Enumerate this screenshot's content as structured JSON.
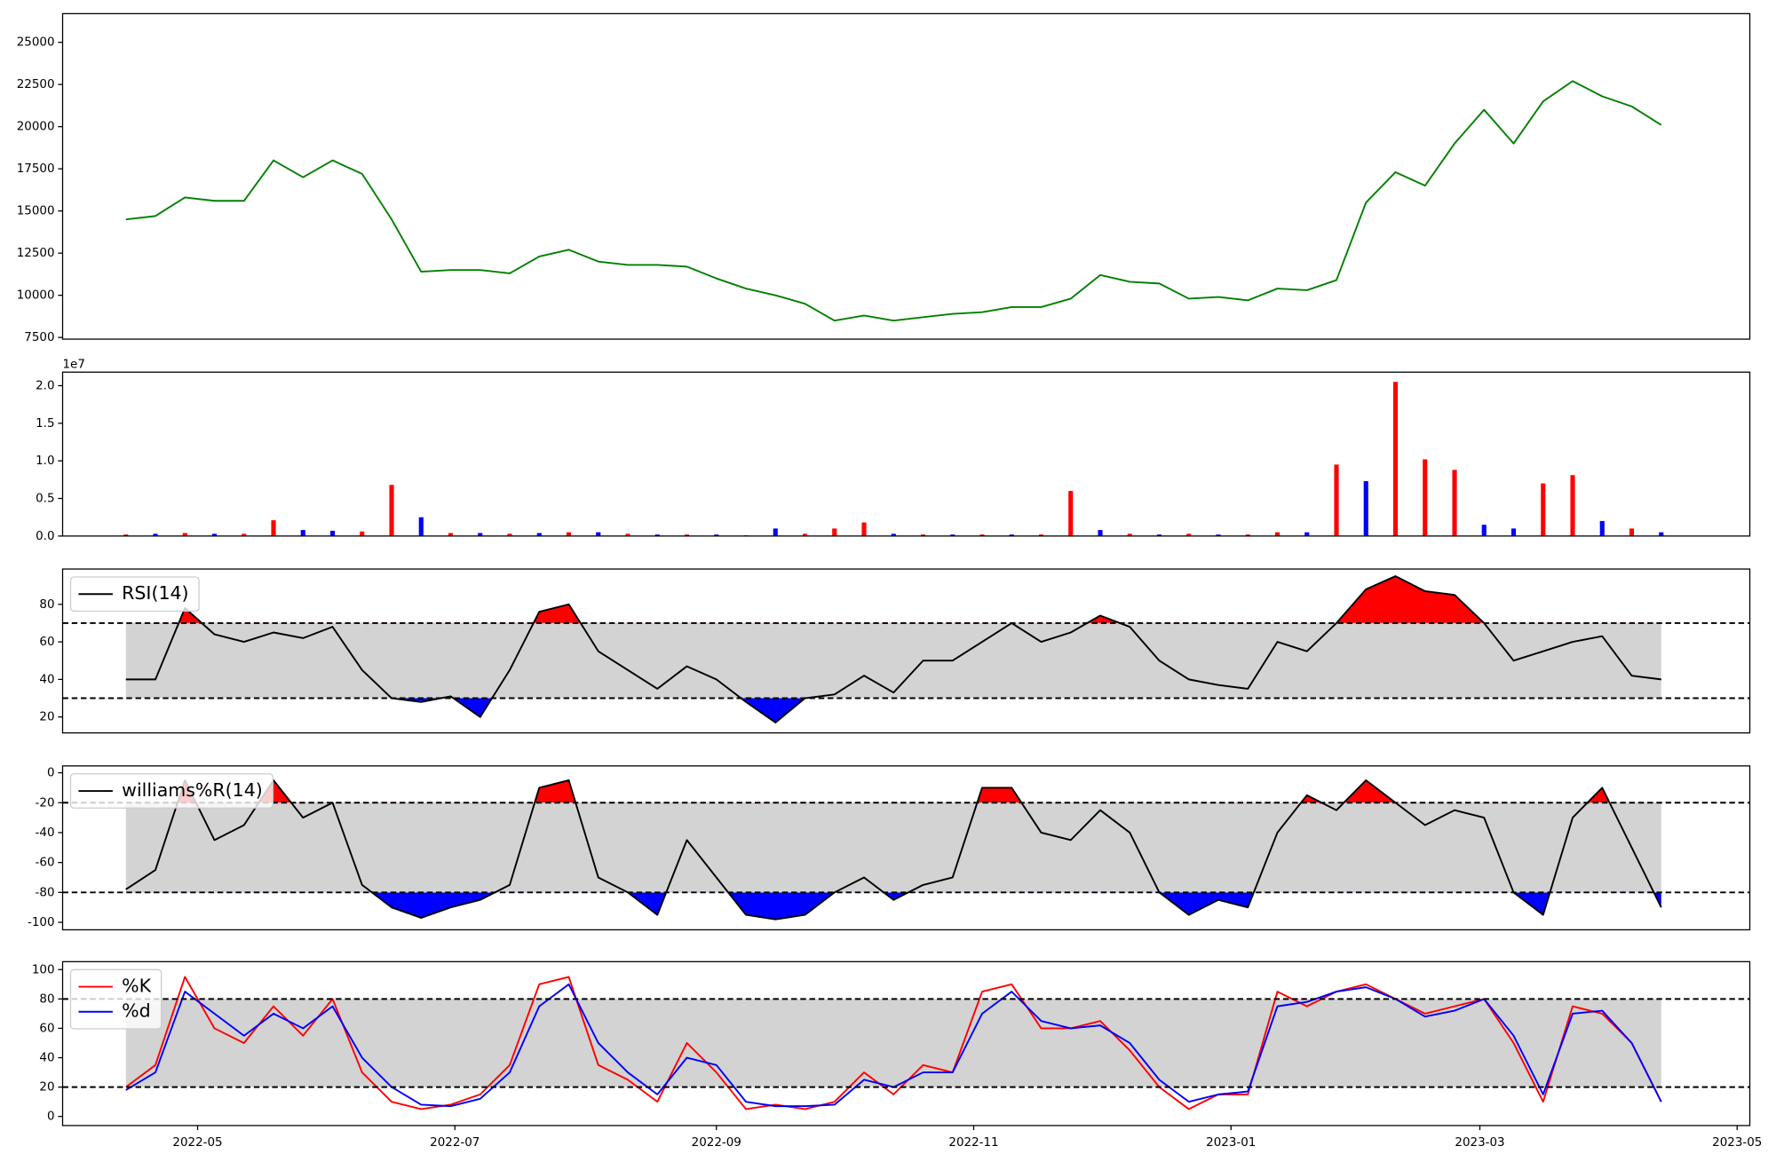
{
  "chart_data": [
    {
      "type": "line",
      "xlim": [
        "2022-03-30",
        "2023-05-04"
      ],
      "ylim": [
        7400,
        26700
      ],
      "yticks": [
        7500,
        10000,
        12500,
        15000,
        17500,
        20000,
        22500,
        25000
      ],
      "x": [
        "2022-04-14",
        "2022-04-21",
        "2022-04-28",
        "2022-05-05",
        "2022-05-12",
        "2022-05-19",
        "2022-05-26",
        "2022-06-02",
        "2022-06-09",
        "2022-06-16",
        "2022-06-23",
        "2022-06-30",
        "2022-07-07",
        "2022-07-14",
        "2022-07-21",
        "2022-07-28",
        "2022-08-04",
        "2022-08-11",
        "2022-08-18",
        "2022-08-25",
        "2022-09-01",
        "2022-09-08",
        "2022-09-15",
        "2022-09-22",
        "2022-09-29",
        "2022-10-06",
        "2022-10-13",
        "2022-10-20",
        "2022-10-27",
        "2022-11-03",
        "2022-11-10",
        "2022-11-17",
        "2022-11-24",
        "2022-12-01",
        "2022-12-08",
        "2022-12-15",
        "2022-12-22",
        "2022-12-29",
        "2023-01-05",
        "2023-01-12",
        "2023-01-19",
        "2023-01-26",
        "2023-02-02",
        "2023-02-09",
        "2023-02-16",
        "2023-02-23",
        "2023-03-02",
        "2023-03-09",
        "2023-03-16",
        "2023-03-23",
        "2023-03-30",
        "2023-04-06",
        "2023-04-13"
      ],
      "series": [
        {
          "color": "green",
          "values": [
            14500,
            14700,
            15800,
            15600,
            15600,
            18000,
            17000,
            18000,
            17200,
            14500,
            11400,
            11500,
            11500,
            11300,
            12300,
            12700,
            12000,
            11800,
            11800,
            11700,
            11000,
            10400,
            10000,
            9500,
            8500,
            8800,
            8500,
            8700,
            8900,
            9000,
            9300,
            9300,
            9800,
            11200,
            10800,
            10700,
            9800,
            9900,
            9700,
            10400,
            10300,
            10900,
            15500,
            17300,
            16500,
            19000,
            21000,
            19000,
            21500,
            22700,
            21800,
            21200,
            20100
          ]
        }
      ]
    },
    {
      "type": "bar",
      "offset_label": "1e7",
      "xlim": [
        "2022-03-30",
        "2023-05-04"
      ],
      "ylim": [
        0,
        21800000
      ],
      "yticks": [
        {
          "value": 0,
          "label": "0.0"
        },
        {
          "value": 5000000,
          "label": "0.5"
        },
        {
          "value": 10000000,
          "label": "1.0"
        },
        {
          "value": 15000000,
          "label": "1.5"
        },
        {
          "value": 20000000,
          "label": "2.0"
        }
      ],
      "x": [
        "2022-04-14",
        "2022-04-21",
        "2022-04-28",
        "2022-05-05",
        "2022-05-12",
        "2022-05-19",
        "2022-05-26",
        "2022-06-02",
        "2022-06-09",
        "2022-06-16",
        "2022-06-23",
        "2022-06-30",
        "2022-07-07",
        "2022-07-14",
        "2022-07-21",
        "2022-07-28",
        "2022-08-04",
        "2022-08-11",
        "2022-08-18",
        "2022-08-25",
        "2022-09-01",
        "2022-09-08",
        "2022-09-15",
        "2022-09-22",
        "2022-09-29",
        "2022-10-06",
        "2022-10-13",
        "2022-10-20",
        "2022-10-27",
        "2022-11-03",
        "2022-11-10",
        "2022-11-17",
        "2022-11-24",
        "2022-12-01",
        "2022-12-08",
        "2022-12-15",
        "2022-12-22",
        "2022-12-29",
        "2023-01-05",
        "2023-01-12",
        "2023-01-19",
        "2023-01-26",
        "2023-02-02",
        "2023-02-09",
        "2023-02-16",
        "2023-02-23",
        "2023-03-02",
        "2023-03-09",
        "2023-03-16",
        "2023-03-23",
        "2023-03-30",
        "2023-04-06",
        "2023-04-13"
      ],
      "series": [
        {
          "values": [
            200000,
            300000,
            400000,
            300000,
            300000,
            2100000,
            800000,
            700000,
            600000,
            6800000,
            2500000,
            400000,
            400000,
            300000,
            400000,
            500000,
            500000,
            300000,
            200000,
            200000,
            200000,
            100000,
            1000000,
            300000,
            1000000,
            1800000,
            300000,
            200000,
            200000,
            200000,
            200000,
            200000,
            6000000,
            800000,
            300000,
            200000,
            300000,
            200000,
            200000,
            500000,
            500000,
            9500000,
            7300000,
            20500000,
            10200000,
            8800000,
            1500000,
            1000000,
            7000000,
            8100000,
            2000000,
            1000000,
            500000
          ],
          "colors": [
            "red",
            "blue",
            "red",
            "blue",
            "red",
            "red",
            "blue",
            "blue",
            "red",
            "red",
            "blue",
            "red",
            "blue",
            "red",
            "blue",
            "red",
            "blue",
            "red",
            "blue",
            "red",
            "blue",
            "red",
            "blue",
            "red",
            "red",
            "red",
            "blue",
            "red",
            "blue",
            "red",
            "blue",
            "red",
            "red",
            "blue",
            "red",
            "blue",
            "red",
            "blue",
            "red",
            "red",
            "blue",
            "red",
            "blue",
            "red",
            "red",
            "red",
            "blue",
            "blue",
            "red",
            "red",
            "blue",
            "red",
            "blue"
          ]
        }
      ]
    },
    {
      "type": "line",
      "legend": "upper left",
      "xlim": [
        "2022-03-30",
        "2023-05-04"
      ],
      "ylim": [
        11.5,
        98.8
      ],
      "yticks": [
        20,
        40,
        60,
        80
      ],
      "hlines": [
        70,
        30
      ],
      "band": [
        30,
        70
      ],
      "fill_above": {
        "value": 70,
        "color": "red"
      },
      "fill_below": {
        "value": 30,
        "color": "blue"
      },
      "x": [
        "2022-04-14",
        "2022-04-21",
        "2022-04-28",
        "2022-05-05",
        "2022-05-12",
        "2022-05-19",
        "2022-05-26",
        "2022-06-02",
        "2022-06-09",
        "2022-06-16",
        "2022-06-23",
        "2022-06-30",
        "2022-07-07",
        "2022-07-14",
        "2022-07-21",
        "2022-07-28",
        "2022-08-04",
        "2022-08-11",
        "2022-08-18",
        "2022-08-25",
        "2022-09-01",
        "2022-09-08",
        "2022-09-15",
        "2022-09-22",
        "2022-09-29",
        "2022-10-06",
        "2022-10-13",
        "2022-10-20",
        "2022-10-27",
        "2022-11-03",
        "2022-11-10",
        "2022-11-17",
        "2022-11-24",
        "2022-12-01",
        "2022-12-08",
        "2022-12-15",
        "2022-12-22",
        "2022-12-29",
        "2023-01-05",
        "2023-01-12",
        "2023-01-19",
        "2023-01-26",
        "2023-02-02",
        "2023-02-09",
        "2023-02-16",
        "2023-02-23",
        "2023-03-02",
        "2023-03-09",
        "2023-03-16",
        "2023-03-23",
        "2023-03-30",
        "2023-04-06",
        "2023-04-13"
      ],
      "series": [
        {
          "name": "RSI(14)",
          "color": "black",
          "values": [
            40,
            40,
            78,
            64,
            60,
            65,
            62,
            68,
            45,
            30,
            28,
            31,
            20,
            45,
            76,
            80,
            55,
            45,
            35,
            47,
            40,
            28,
            17,
            30,
            32,
            42,
            33,
            50,
            50,
            60,
            70,
            60,
            65,
            74,
            68,
            50,
            40,
            37,
            35,
            60,
            55,
            70,
            88,
            95,
            87,
            85,
            70,
            50,
            55,
            60,
            63,
            42,
            40
          ]
        }
      ]
    },
    {
      "type": "line",
      "legend": "upper left",
      "xlim": [
        "2022-03-30",
        "2023-05-04"
      ],
      "ylim": [
        -105,
        4.6
      ],
      "yticks": [
        -100,
        -80,
        -60,
        -40,
        -20,
        0
      ],
      "hlines": [
        -20,
        -80
      ],
      "band": [
        -80,
        -20
      ],
      "fill_above": {
        "value": -20,
        "color": "red"
      },
      "fill_below": {
        "value": -80,
        "color": "blue"
      },
      "x": [
        "2022-04-14",
        "2022-04-21",
        "2022-04-28",
        "2022-05-05",
        "2022-05-12",
        "2022-05-19",
        "2022-05-26",
        "2022-06-02",
        "2022-06-09",
        "2022-06-16",
        "2022-06-23",
        "2022-06-30",
        "2022-07-07",
        "2022-07-14",
        "2022-07-21",
        "2022-07-28",
        "2022-08-04",
        "2022-08-11",
        "2022-08-18",
        "2022-08-25",
        "2022-09-01",
        "2022-09-08",
        "2022-09-15",
        "2022-09-22",
        "2022-09-29",
        "2022-10-06",
        "2022-10-13",
        "2022-10-20",
        "2022-10-27",
        "2022-11-03",
        "2022-11-10",
        "2022-11-17",
        "2022-11-24",
        "2022-12-01",
        "2022-12-08",
        "2022-12-15",
        "2022-12-22",
        "2022-12-29",
        "2023-01-05",
        "2023-01-12",
        "2023-01-19",
        "2023-01-26",
        "2023-02-02",
        "2023-02-09",
        "2023-02-16",
        "2023-02-23",
        "2023-03-02",
        "2023-03-09",
        "2023-03-16",
        "2023-03-23",
        "2023-03-30",
        "2023-04-06",
        "2023-04-13"
      ],
      "series": [
        {
          "name": "williams%R(14)",
          "color": "black",
          "values": [
            -78,
            -65,
            -5,
            -45,
            -35,
            -5,
            -30,
            -20,
            -75,
            -90,
            -97,
            -90,
            -85,
            -75,
            -10,
            -5,
            -70,
            -80,
            -95,
            -45,
            -70,
            -95,
            -98,
            -95,
            -80,
            -70,
            -85,
            -75,
            -70,
            -10,
            -10,
            -40,
            -45,
            -25,
            -40,
            -80,
            -95,
            -85,
            -90,
            -40,
            -15,
            -25,
            -5,
            -20,
            -35,
            -25,
            -30,
            -80,
            -95,
            -30,
            -10,
            -50,
            -90
          ]
        }
      ]
    },
    {
      "type": "line",
      "legend": "upper left",
      "xlim": [
        "2022-03-30",
        "2023-05-04"
      ],
      "ylim": [
        -6.2,
        105.4
      ],
      "yticks": [
        0,
        20,
        40,
        60,
        80,
        100
      ],
      "hlines": [
        80,
        20
      ],
      "band": [
        20,
        80
      ],
      "xticks": [
        {
          "value": "2022-05-01",
          "label": "2022-05"
        },
        {
          "value": "2022-07-01",
          "label": "2022-07"
        },
        {
          "value": "2022-09-01",
          "label": "2022-09"
        },
        {
          "value": "2022-11-01",
          "label": "2022-11"
        },
        {
          "value": "2023-01-01",
          "label": "2023-01"
        },
        {
          "value": "2023-03-01",
          "label": "2023-03"
        },
        {
          "value": "2023-05-01",
          "label": "2023-05"
        }
      ],
      "x": [
        "2022-04-14",
        "2022-04-21",
        "2022-04-28",
        "2022-05-05",
        "2022-05-12",
        "2022-05-19",
        "2022-05-26",
        "2022-06-02",
        "2022-06-09",
        "2022-06-16",
        "2022-06-23",
        "2022-06-30",
        "2022-07-07",
        "2022-07-14",
        "2022-07-21",
        "2022-07-28",
        "2022-08-04",
        "2022-08-11",
        "2022-08-18",
        "2022-08-25",
        "2022-09-01",
        "2022-09-08",
        "2022-09-15",
        "2022-09-22",
        "2022-09-29",
        "2022-10-06",
        "2022-10-13",
        "2022-10-20",
        "2022-10-27",
        "2022-11-03",
        "2022-11-10",
        "2022-11-17",
        "2022-11-24",
        "2022-12-01",
        "2022-12-08",
        "2022-12-15",
        "2022-12-22",
        "2022-12-29",
        "2023-01-05",
        "2023-01-12",
        "2023-01-19",
        "2023-01-26",
        "2023-02-02",
        "2023-02-09",
        "2023-02-16",
        "2023-02-23",
        "2023-03-02",
        "2023-03-09",
        "2023-03-16",
        "2023-03-23",
        "2023-03-30",
        "2023-04-06",
        "2023-04-13"
      ],
      "series": [
        {
          "name": "%K",
          "color": "red",
          "values": [
            20,
            35,
            95,
            60,
            50,
            75,
            55,
            80,
            30,
            10,
            5,
            8,
            15,
            35,
            90,
            95,
            35,
            25,
            10,
            50,
            30,
            5,
            8,
            5,
            10,
            30,
            15,
            35,
            30,
            85,
            90,
            60,
            60,
            65,
            45,
            20,
            5,
            15,
            15,
            85,
            75,
            85,
            90,
            80,
            70,
            75,
            80,
            50,
            10,
            75,
            70,
            50,
            10
          ]
        },
        {
          "name": "%d",
          "color": "blue",
          "values": [
            18,
            30,
            85,
            70,
            55,
            70,
            60,
            75,
            40,
            20,
            8,
            7,
            12,
            30,
            75,
            90,
            50,
            30,
            15,
            40,
            35,
            10,
            7,
            7,
            8,
            25,
            20,
            30,
            30,
            70,
            85,
            65,
            60,
            62,
            50,
            25,
            10,
            15,
            17,
            75,
            78,
            85,
            88,
            80,
            68,
            72,
            80,
            55,
            15,
            70,
            72,
            50,
            10
          ]
        }
      ]
    }
  ]
}
